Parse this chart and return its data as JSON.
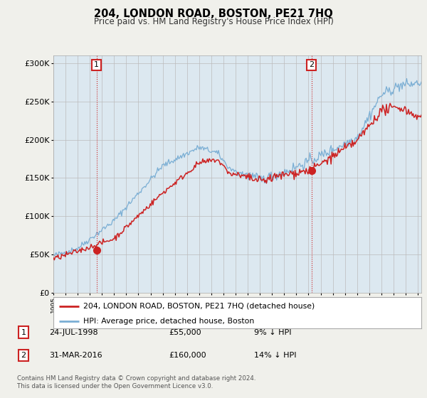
{
  "title": "204, LONDON ROAD, BOSTON, PE21 7HQ",
  "subtitle": "Price paid vs. HM Land Registry's House Price Index (HPI)",
  "hpi_label": "HPI: Average price, detached house, Boston",
  "property_label": "204, LONDON ROAD, BOSTON, PE21 7HQ (detached house)",
  "footnote": "Contains HM Land Registry data © Crown copyright and database right 2024.\nThis data is licensed under the Open Government Licence v3.0.",
  "sale1_date": "24-JUL-1998",
  "sale1_price": 55000,
  "sale1_hpi_diff": "9% ↓ HPI",
  "sale2_date": "31-MAR-2016",
  "sale2_price": 160000,
  "sale2_hpi_diff": "14% ↓ HPI",
  "hpi_color": "#7aaed4",
  "property_color": "#cc2222",
  "sale_marker_color": "#cc2222",
  "background_color": "#f0f0eb",
  "plot_bg_color": "#dce8f0",
  "ylim": [
    0,
    310000
  ],
  "yticks": [
    0,
    50000,
    100000,
    150000,
    200000,
    250000,
    300000
  ],
  "xlim_start": 1995.0,
  "xlim_end": 2025.3,
  "sale1_year_dec": 1998.558,
  "sale2_year_dec": 2016.247
}
